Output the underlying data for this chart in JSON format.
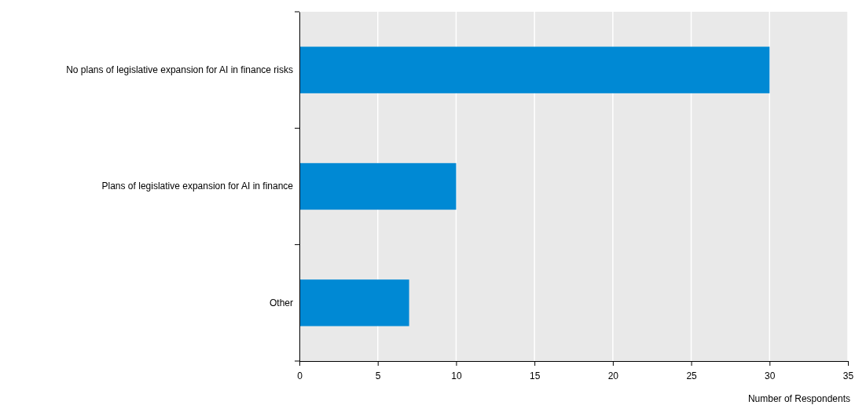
{
  "chart_data": {
    "type": "bar",
    "orientation": "horizontal",
    "categories": [
      "No plans of legislative expansion for AI in finance risks",
      "Plans of legislative expansion for AI in finance",
      "Other"
    ],
    "values": [
      30,
      10,
      7
    ],
    "color": "#0089d4",
    "xlim": [
      0,
      35
    ],
    "xticks": [
      0,
      5,
      10,
      15,
      20,
      25,
      30,
      35
    ],
    "xlabel": "Number of Respondents",
    "grid": "x"
  }
}
